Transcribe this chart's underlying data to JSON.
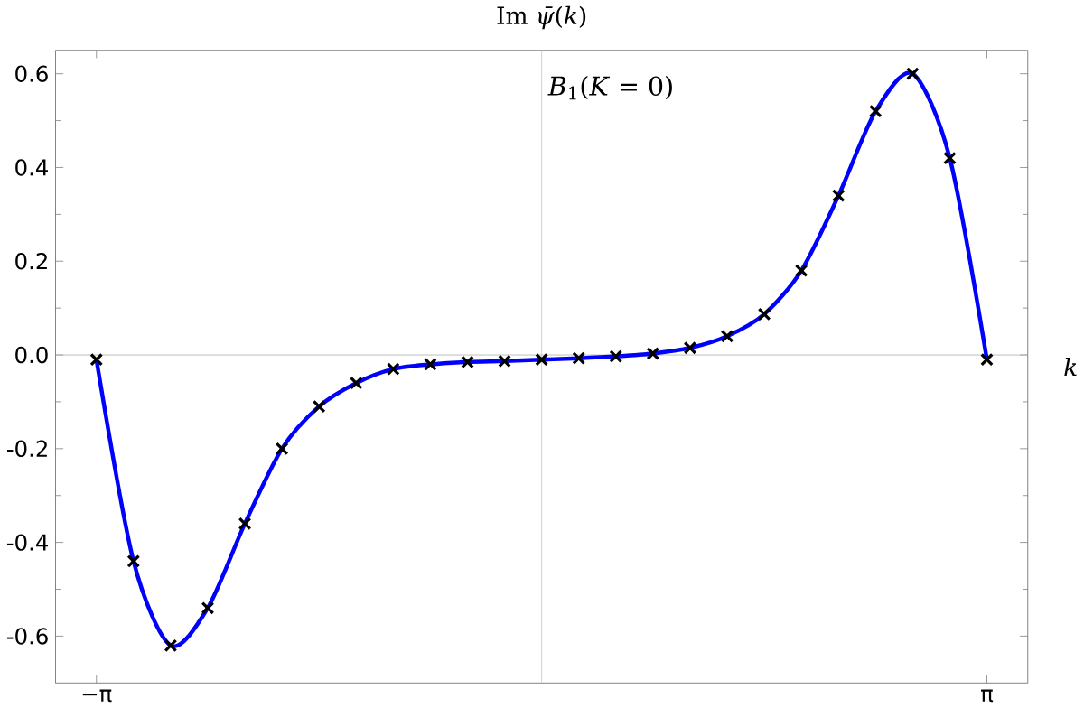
{
  "chart_data": {
    "type": "scatter",
    "title": "Im *ψ̄*(*k*)",
    "xlabel": "*k*",
    "annotations": [
      "*B*$_{1}$(*K* = 0)"
    ],
    "x": [
      -3.1416,
      -2.8798,
      -2.618,
      -2.3562,
      -2.0944,
      -1.8326,
      -1.5708,
      -1.309,
      -1.0472,
      -0.7854,
      -0.5236,
      -0.2618,
      0,
      0.2618,
      0.5236,
      0.7854,
      1.0472,
      1.309,
      1.5708,
      1.8326,
      2.0944,
      2.3562,
      2.618,
      2.8798,
      3.1416
    ],
    "series": [
      {
        "type": "line",
        "color": "#0000ff",
        "marker": "none",
        "line_style": "solid",
        "values": [
          -0.01,
          -0.44,
          -0.62,
          -0.54,
          -0.36,
          -0.2,
          -0.11,
          -0.06,
          -0.03,
          -0.02,
          -0.015,
          -0.013,
          -0.01,
          -0.007,
          -0.003,
          0.003,
          0.015,
          0.04,
          0.087,
          0.18,
          0.34,
          0.52,
          0.6,
          0.42,
          -0.01
        ]
      },
      {
        "color": "#000000",
        "marker": "cross",
        "values": [
          -0.01,
          -0.44,
          -0.62,
          -0.54,
          -0.36,
          -0.2,
          -0.11,
          -0.06,
          -0.03,
          -0.02,
          -0.015,
          -0.013,
          -0.01,
          -0.007,
          -0.003,
          0.003,
          0.015,
          0.04,
          0.087,
          0.18,
          0.34,
          0.52,
          0.6,
          0.42,
          -0.01
        ]
      }
    ],
    "xlim": [
      -3.43,
      3.43
    ],
    "ylim": [
      -0.7,
      0.65
    ],
    "xticks": [
      {
        "value": -3.1416,
        "label": "−π"
      },
      {
        "value": 3.1416,
        "label": "π"
      }
    ],
    "yticks": [
      -0.6,
      -0.4,
      -0.2,
      {
        "value": 0,
        "label": "0.0"
      },
      0.2,
      0.4,
      0.6
    ],
    "ref_lines": [
      {
        "axis": "x",
        "value": 0,
        "color": "#c8c8c8"
      },
      {
        "axis": "y",
        "value": 0,
        "color": "#b0b0b0"
      }
    ],
    "grid": false
  }
}
